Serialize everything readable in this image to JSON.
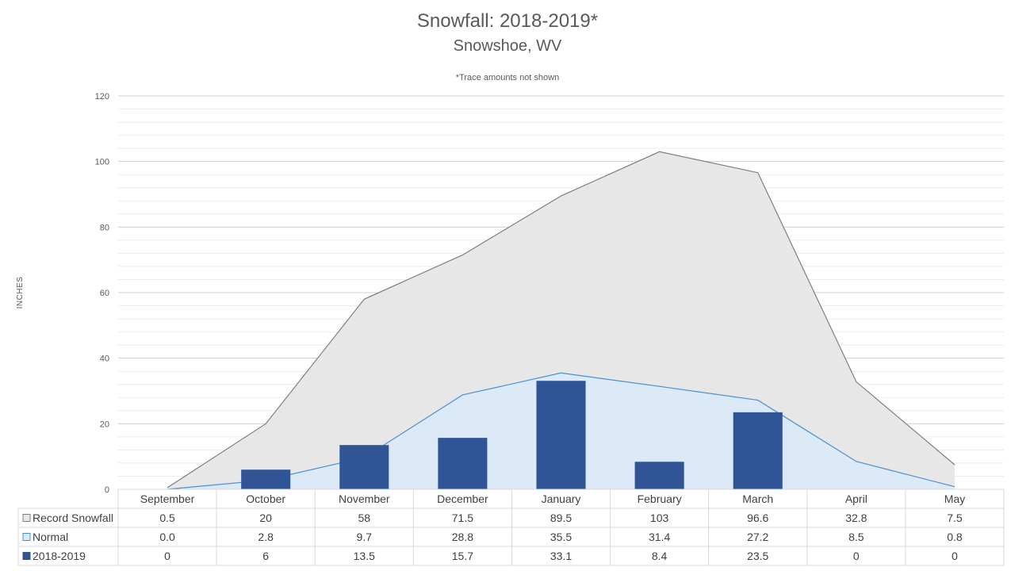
{
  "chart_data": {
    "type": "bar",
    "title": "Snowfall: 2018-2019*",
    "subtitle": "Snowshoe, WV",
    "note": "*Trace amounts not shown",
    "ylabel": "INCHES",
    "xlabel": "",
    "ylim": [
      0,
      120
    ],
    "yticks": [
      "0",
      "20",
      "40",
      "60",
      "80",
      "100",
      "120"
    ],
    "categories": [
      "September",
      "October",
      "November",
      "December",
      "January",
      "February",
      "March",
      "April",
      "May"
    ],
    "series": [
      {
        "name": "Record Snowfall",
        "kind": "area",
        "fill": "#e7e7e7",
        "stroke": "#7f7f7f",
        "values": [
          0.5,
          20,
          58,
          71.5,
          89.5,
          103,
          96.6,
          32.8,
          7.5
        ],
        "labels": [
          "0.5",
          "20",
          "58",
          "71.5",
          "89.5",
          "103",
          "96.6",
          "32.8",
          "7.5"
        ]
      },
      {
        "name": "Normal",
        "kind": "area",
        "fill": "#dce9f7",
        "stroke": "#4a90d0",
        "values": [
          0.0,
          2.8,
          9.7,
          28.8,
          35.5,
          31.4,
          27.2,
          8.5,
          0.8
        ],
        "labels": [
          "0.0",
          "2.8",
          "9.7",
          "28.8",
          "35.5",
          "31.4",
          "27.2",
          "8.5",
          "0.8"
        ]
      },
      {
        "name": "2018-2019",
        "kind": "bar",
        "fill": "#2f5597",
        "stroke": "#2f5597",
        "values": [
          0,
          6,
          13.5,
          15.7,
          33.1,
          8.4,
          23.5,
          0,
          0
        ],
        "labels": [
          "0",
          "6",
          "13.5",
          "15.7",
          "33.1",
          "8.4",
          "23.5",
          "0",
          "0"
        ]
      }
    ],
    "grid": true,
    "legend": "data-table"
  }
}
